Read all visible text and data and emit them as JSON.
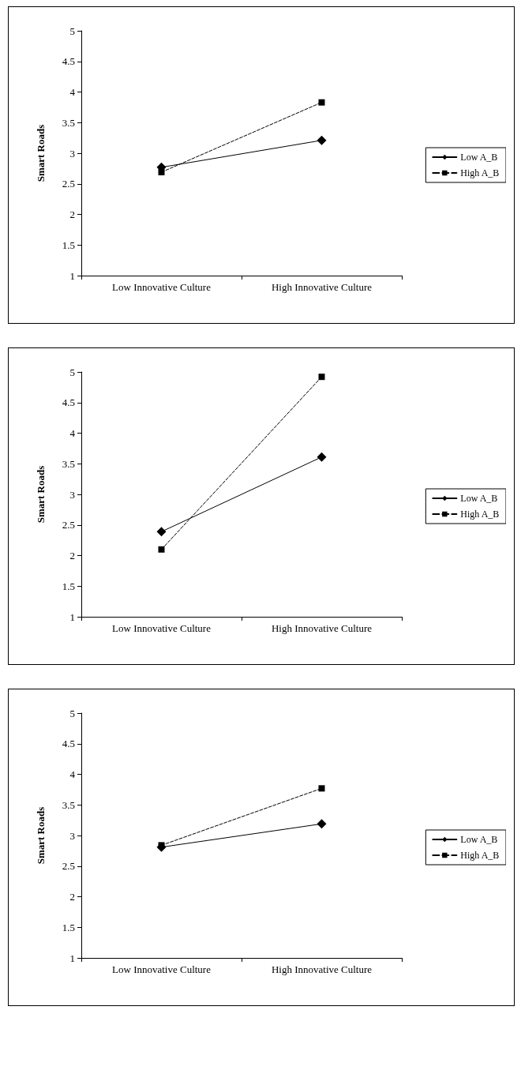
{
  "chart_data": [
    {
      "type": "line",
      "ylabel": "Smart Roads",
      "categories": [
        "Low Innovative Culture",
        "High Innovative Culture"
      ],
      "ylim": [
        1,
        5
      ],
      "yticks": [
        1,
        1.5,
        2,
        2.5,
        3,
        3.5,
        4,
        4.5,
        5
      ],
      "grid": false,
      "legend": "right",
      "series": [
        {
          "name": "Low A_B",
          "color": "#000000",
          "values": [
            2.77,
            3.21
          ],
          "marker": "diamond",
          "line_style": "solid"
        },
        {
          "name": "High A_B",
          "color": "#000000",
          "values": [
            2.69,
            3.83
          ],
          "marker": "square",
          "line_style": "dashed"
        }
      ]
    },
    {
      "type": "line",
      "ylabel": "Smart Roads",
      "categories": [
        "Low Innovative Culture",
        "High Innovative Culture"
      ],
      "ylim": [
        1,
        5
      ],
      "yticks": [
        1,
        1.5,
        2,
        2.5,
        3,
        3.5,
        4,
        4.5,
        5
      ],
      "grid": false,
      "legend": "right",
      "series": [
        {
          "name": "Low A_B",
          "color": "#000000",
          "values": [
            2.39,
            3.61
          ],
          "marker": "diamond",
          "line_style": "solid"
        },
        {
          "name": "High A_B",
          "color": "#000000",
          "values": [
            2.1,
            4.92
          ],
          "marker": "square",
          "line_style": "dashed"
        }
      ]
    },
    {
      "type": "line",
      "ylabel": "Smart Roads",
      "categories": [
        "Low Innovative Culture",
        "High Innovative Culture"
      ],
      "ylim": [
        1,
        5
      ],
      "yticks": [
        1,
        1.5,
        2,
        2.5,
        3,
        3.5,
        4,
        4.5,
        5
      ],
      "grid": false,
      "legend": "right",
      "series": [
        {
          "name": "Low A_B",
          "color": "#000000",
          "values": [
            2.81,
            3.19
          ],
          "marker": "diamond",
          "line_style": "solid"
        },
        {
          "name": "High A_B",
          "color": "#000000",
          "values": [
            2.84,
            3.77
          ],
          "marker": "square",
          "line_style": "dashed"
        }
      ]
    }
  ]
}
